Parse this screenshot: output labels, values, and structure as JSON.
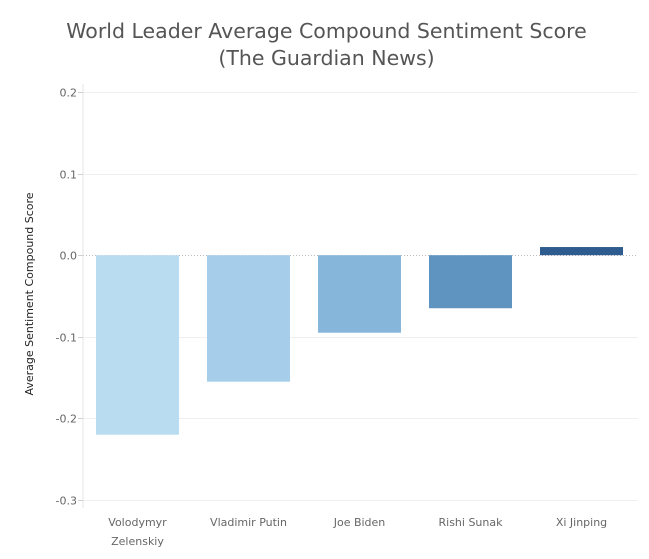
{
  "chart_data": {
    "type": "bar",
    "title_line1": "World Leader Average Compound Sentiment Score",
    "title_line2": "(The Guardian News)",
    "xlabel": "",
    "ylabel": "Average Sentiment Compound Score",
    "ylim": [
      -0.3,
      0.2
    ],
    "yticks": [
      0.2,
      0.1,
      0.0,
      -0.1,
      -0.2,
      -0.3
    ],
    "ytick_labels": [
      "0.2",
      "0.1",
      "0.0",
      "-0.1",
      "-0.2",
      "-0.3"
    ],
    "grid": true,
    "categories": [
      [
        "Volodymyr",
        "Zelenskiy"
      ],
      [
        "Vladimir Putin"
      ],
      [
        "Joe Biden"
      ],
      [
        "Rishi Sunak"
      ],
      [
        "Xi Jinping"
      ]
    ],
    "values": [
      -0.22,
      -0.155,
      -0.095,
      -0.065,
      0.01
    ],
    "colors": [
      "#b9dcf0",
      "#a6cde9",
      "#86b6d9",
      "#5f93c0",
      "#2e5c8e"
    ]
  }
}
